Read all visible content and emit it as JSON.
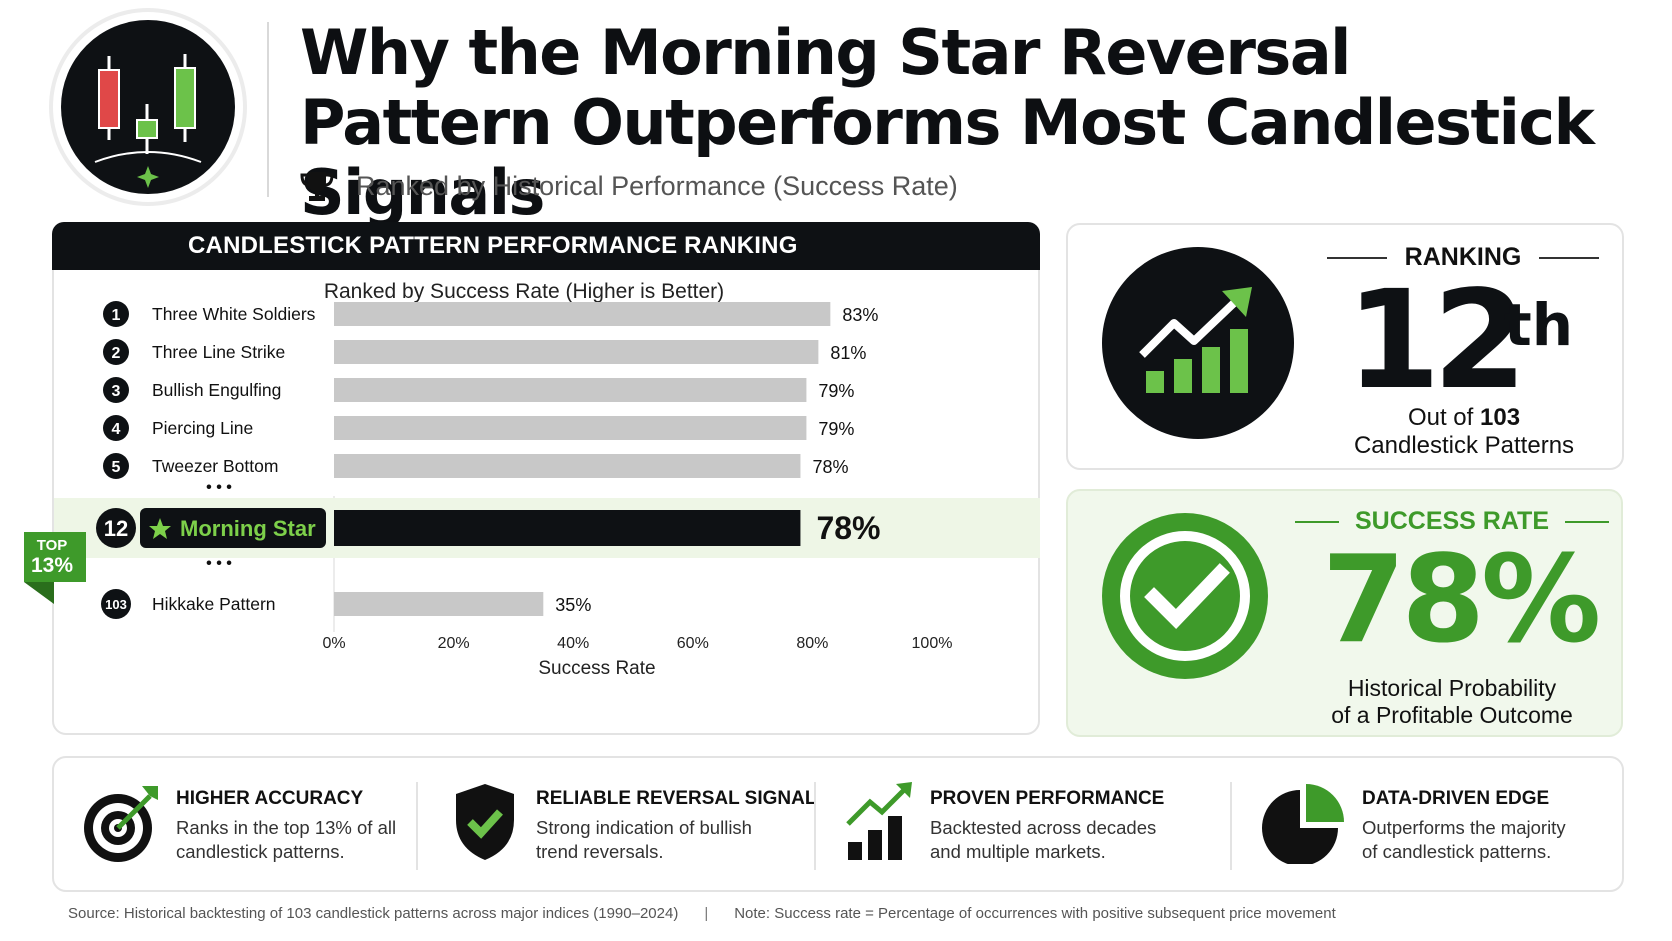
{
  "header": {
    "title_line1": "Why the Morning Star Reversal",
    "title_line2": "Pattern Outperforms Most Candlestick Signals",
    "subtitle": "Ranked by Historical Performance (Success Rate)",
    "logo_icon": "candlestick-logo-icon",
    "subtitle_icon": "trophy-icon"
  },
  "chart_data": {
    "type": "bar",
    "orientation": "horizontal",
    "title": "CANDLESTICK PATTERN PERFORMANCE RANKING",
    "caption": "Ranked by Success Rate (Higher is Better)",
    "xlabel": "Success Rate",
    "xlim": [
      0,
      100
    ],
    "xticks": [
      "0%",
      "20%",
      "40%",
      "60%",
      "80%",
      "100%"
    ],
    "categories": [
      "Three White Soldiers",
      "Three Line Strike",
      "Bullish Engulfing",
      "Piercing Line",
      "Tweezer Bottom",
      "Morning Star",
      "Hikkake Pattern"
    ],
    "ranks": [
      "1",
      "2",
      "3",
      "4",
      "5",
      "12",
      "103"
    ],
    "values": [
      83,
      81,
      79,
      79,
      78,
      78,
      35
    ],
    "value_labels": [
      "83%",
      "81%",
      "79%",
      "79%",
      "78%",
      "78%",
      "35%"
    ],
    "highlight": "Morning Star",
    "gap_marker": "• • •",
    "bar_color": "#c8c8c8",
    "highlight_bar_color": "#0e1114",
    "highlight_text_color": "#7dd04a",
    "highlight_band_color": "#eef6e6",
    "badge": {
      "line1": "TOP",
      "line2": "13%"
    }
  },
  "ranking_card": {
    "label": "RANKING",
    "number": "12",
    "suffix": "th",
    "out_of_prefix": "Out of ",
    "out_of_value": "103",
    "out_of_line2": "Candlestick Patterns",
    "icon": "growth-chart-icon"
  },
  "success_card": {
    "label": "SUCCESS RATE",
    "value": "78%",
    "desc_line1": "Historical Probability",
    "desc_line2": "of a Profitable Outcome",
    "icon": "check-circle-icon"
  },
  "features": [
    {
      "title": "HIGHER ACCURACY",
      "desc_line1": "Ranks in the top 13% of all",
      "desc_line2": "candlestick patterns.",
      "icon": "target-icon"
    },
    {
      "title": "RELIABLE REVERSAL SIGNAL",
      "desc_line1": "Strong indication of bullish",
      "desc_line2": "trend reversals.",
      "icon": "shield-check-icon"
    },
    {
      "title": "PROVEN PERFORMANCE",
      "desc_line1": "Backtested across decades",
      "desc_line2": "and multiple markets.",
      "icon": "bar-growth-icon"
    },
    {
      "title": "DATA-DRIVEN EDGE",
      "desc_line1": "Outperforms the majority",
      "desc_line2": "of candlestick patterns.",
      "icon": "pie-chart-icon"
    }
  ],
  "footer": {
    "source": "Source: Historical backtesting of 103 candlestick patterns across major indices (1990–2024)",
    "separator": "|",
    "note": "Note: Success rate = Percentage of occurrences with positive subsequent price movement"
  },
  "colors": {
    "green": "#3e9a2a",
    "bright_green": "#6cc24a",
    "dark": "#0e1114",
    "red": "#e04848"
  }
}
